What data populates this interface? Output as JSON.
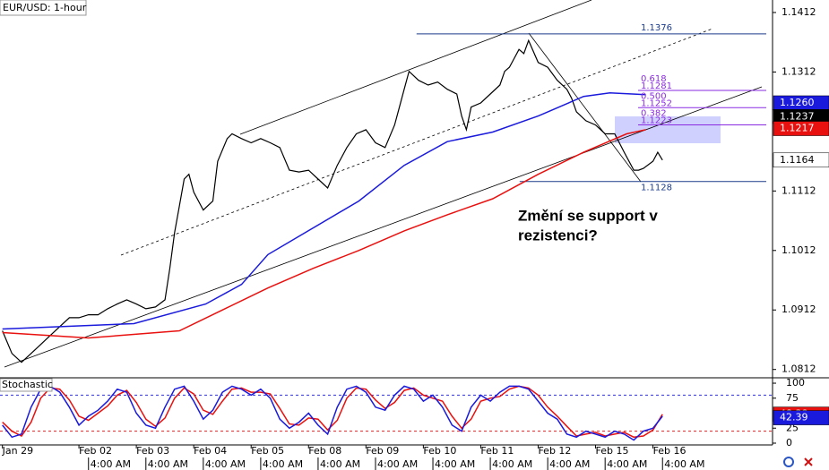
{
  "chart_data": [
    {
      "type": "line",
      "title": "EUR/USD: 1-hour",
      "xlim": [
        -1,
        322
      ],
      "ylim": [
        1.0798,
        1.1433
      ],
      "yticks": [
        1.1412,
        1.1312,
        1.1112,
        1.1012,
        1.0912,
        1.0812
      ],
      "series": [
        {
          "color": "#000000",
          "x": [
            0,
            4,
            8,
            12,
            16,
            20,
            24,
            28,
            32,
            36,
            40,
            44,
            48,
            52,
            56,
            60,
            64,
            68,
            70,
            72,
            74,
            76,
            78,
            80,
            84,
            88,
            90,
            94,
            96,
            100,
            104,
            108,
            112,
            116,
            120,
            124,
            128,
            132,
            136,
            140,
            144,
            148,
            152,
            156,
            160,
            164,
            168,
            170,
            174,
            178,
            182,
            186,
            190,
            192,
            194,
            196,
            200,
            204,
            208,
            210,
            212,
            214,
            216,
            218,
            220,
            224,
            228,
            232,
            236,
            238,
            240,
            244,
            248,
            252,
            256,
            260,
            264,
            266,
            268,
            272,
            274,
            276
          ],
          "values": [
            1.0877,
            1.0839,
            1.0824,
            1.0839,
            1.0854,
            1.0869,
            1.0884,
            1.0899,
            1.0899,
            1.0904,
            1.0904,
            1.0914,
            1.0922,
            1.0929,
            1.0922,
            1.0914,
            1.0917,
            1.0929,
            1.0982,
            1.1042,
            1.1087,
            1.1132,
            1.114,
            1.111,
            1.108,
            1.1095,
            1.1162,
            1.12,
            1.1208,
            1.12,
            1.1193,
            1.12,
            1.1193,
            1.1185,
            1.1147,
            1.1144,
            1.1147,
            1.1132,
            1.1117,
            1.1155,
            1.1185,
            1.1208,
            1.1215,
            1.1193,
            1.1185,
            1.1223,
            1.1283,
            1.1313,
            1.1298,
            1.129,
            1.1295,
            1.1283,
            1.1275,
            1.1238,
            1.1215,
            1.1253,
            1.126,
            1.1275,
            1.129,
            1.1313,
            1.132,
            1.1335,
            1.135,
            1.1343,
            1.1365,
            1.1328,
            1.132,
            1.1298,
            1.1283,
            1.1268,
            1.1245,
            1.123,
            1.1223,
            1.1208,
            1.1208,
            1.1177,
            1.1147,
            1.1147,
            1.115,
            1.1162,
            1.1177,
            1.1164
          ]
        },
        {
          "color": "#1a1adc",
          "x": [
            0,
            55,
            85,
            100,
            111,
            130,
            149,
            168,
            186,
            205,
            224,
            243,
            254,
            269
          ],
          "values": [
            1.088,
            1.0889,
            1.0922,
            1.0955,
            1.1005,
            1.105,
            1.1095,
            1.1155,
            1.1195,
            1.1211,
            1.1238,
            1.1271,
            1.1277,
            1.1274
          ]
        },
        {
          "color": "#e8110f",
          "x": [
            0,
            36,
            74,
            93,
            111,
            130,
            149,
            168,
            186,
            205,
            224,
            243,
            261,
            269
          ],
          "values": [
            1.0874,
            1.0865,
            1.0877,
            1.0914,
            1.0949,
            1.0982,
            1.1012,
            1.1045,
            1.1072,
            1.1099,
            1.114,
            1.1177,
            1.1208,
            1.1215
          ]
        }
      ],
      "fibonacci": {
        "color": "#8a2be2",
        "high": 1.1376,
        "low": 1.1128,
        "levels": [
          {
            "ratio": "0.618",
            "price": 1.1281
          },
          {
            "ratio": "0.500",
            "price": 1.1252
          },
          {
            "ratio": "0.382",
            "price": 1.1223
          }
        ]
      },
      "price_markers": [
        {
          "value": 1.126,
          "label": "1.1260",
          "color": "#1a1adc"
        },
        {
          "value": 1.1237,
          "color": "#000000"
        },
        {
          "value": 1.1217,
          "color": "#e8110f"
        },
        {
          "value": 1.1164,
          "color": "#ffffff"
        }
      ],
      "annotation": [
        "Změní se support v",
        "rezistenci?"
      ]
    },
    {
      "type": "line",
      "title": "Stochastic",
      "xlim": [
        -1,
        322
      ],
      "ylim": [
        -3,
        109
      ],
      "yticks": [
        100,
        75,
        25,
        0
      ],
      "levels": [
        {
          "value": 80,
          "color": "#3030e0"
        },
        {
          "value": 20,
          "color": "#e02020"
        }
      ],
      "x": [
        0,
        4,
        8,
        12,
        16,
        20,
        24,
        28,
        32,
        36,
        40,
        44,
        48,
        52,
        56,
        60,
        64,
        68,
        72,
        76,
        80,
        84,
        88,
        92,
        96,
        100,
        104,
        108,
        112,
        116,
        120,
        124,
        128,
        132,
        136,
        140,
        144,
        148,
        152,
        156,
        160,
        164,
        168,
        172,
        176,
        180,
        184,
        188,
        192,
        196,
        200,
        204,
        208,
        212,
        216,
        220,
        224,
        228,
        232,
        236,
        240,
        244,
        248,
        252,
        256,
        260,
        264,
        268,
        272,
        276
      ],
      "series": [
        {
          "color": "#e8110f",
          "values": [
            35,
            20,
            12,
            35,
            75,
            92,
            90,
            72,
            45,
            38,
            50,
            62,
            80,
            88,
            68,
            40,
            28,
            42,
            75,
            92,
            82,
            55,
            48,
            70,
            90,
            92,
            85,
            85,
            82,
            58,
            32,
            30,
            42,
            40,
            22,
            38,
            75,
            92,
            90,
            72,
            58,
            68,
            88,
            92,
            80,
            75,
            70,
            45,
            25,
            40,
            70,
            75,
            78,
            90,
            95,
            92,
            80,
            60,
            45,
            28,
            12,
            15,
            18,
            12,
            15,
            18,
            10,
            12,
            22,
            48
          ]
        },
        {
          "color": "#1a1adc",
          "values": [
            30,
            10,
            15,
            60,
            90,
            95,
            85,
            60,
            30,
            45,
            55,
            70,
            90,
            85,
            50,
            30,
            25,
            60,
            90,
            95,
            70,
            40,
            55,
            85,
            95,
            90,
            80,
            90,
            75,
            40,
            25,
            35,
            50,
            30,
            15,
            60,
            90,
            95,
            85,
            60,
            55,
            80,
            95,
            90,
            70,
            80,
            60,
            30,
            20,
            60,
            80,
            70,
            85,
            95,
            95,
            90,
            70,
            50,
            40,
            15,
            10,
            20,
            15,
            10,
            20,
            15,
            5,
            20,
            25,
            45
          ]
        }
      ],
      "markers": [
        {
          "value": 48.38,
          "color": "#e8110f"
        },
        {
          "value": 42.39,
          "color": "#1a1adc"
        }
      ],
      "xticks": [
        {
          "value": 0,
          "label": "Jan 29"
        },
        {
          "value": 32,
          "label": "Feb 02"
        },
        {
          "value": 56,
          "label": "Feb 03"
        },
        {
          "value": 80,
          "label": "Feb 04"
        },
        {
          "value": 104,
          "label": "Feb 05"
        },
        {
          "value": 128,
          "label": "Feb 08"
        },
        {
          "value": 152,
          "label": "Feb 09"
        },
        {
          "value": 176,
          "label": "Feb 10"
        },
        {
          "value": 200,
          "label": "Feb 11"
        },
        {
          "value": 224,
          "label": "Feb 12"
        },
        {
          "value": 248,
          "label": "Feb 15"
        },
        {
          "value": 272,
          "label": "Feb 16"
        }
      ],
      "minor_xticks": [
        {
          "value": 36,
          "label": "4:00 AM"
        },
        {
          "value": 60,
          "label": "4:00 AM"
        },
        {
          "value": 84,
          "label": "4:00 AM"
        },
        {
          "value": 108,
          "label": "4:00 AM"
        },
        {
          "value": 132,
          "label": "4:00 AM"
        },
        {
          "value": 156,
          "label": "4:00 AM"
        },
        {
          "value": 180,
          "label": "4:00 AM"
        },
        {
          "value": 204,
          "label": "4:00 AM"
        },
        {
          "value": 228,
          "label": "4:00 AM"
        },
        {
          "value": 252,
          "label": "4:00 AM"
        },
        {
          "value": 276,
          "label": "4:00 AM"
        }
      ]
    }
  ]
}
